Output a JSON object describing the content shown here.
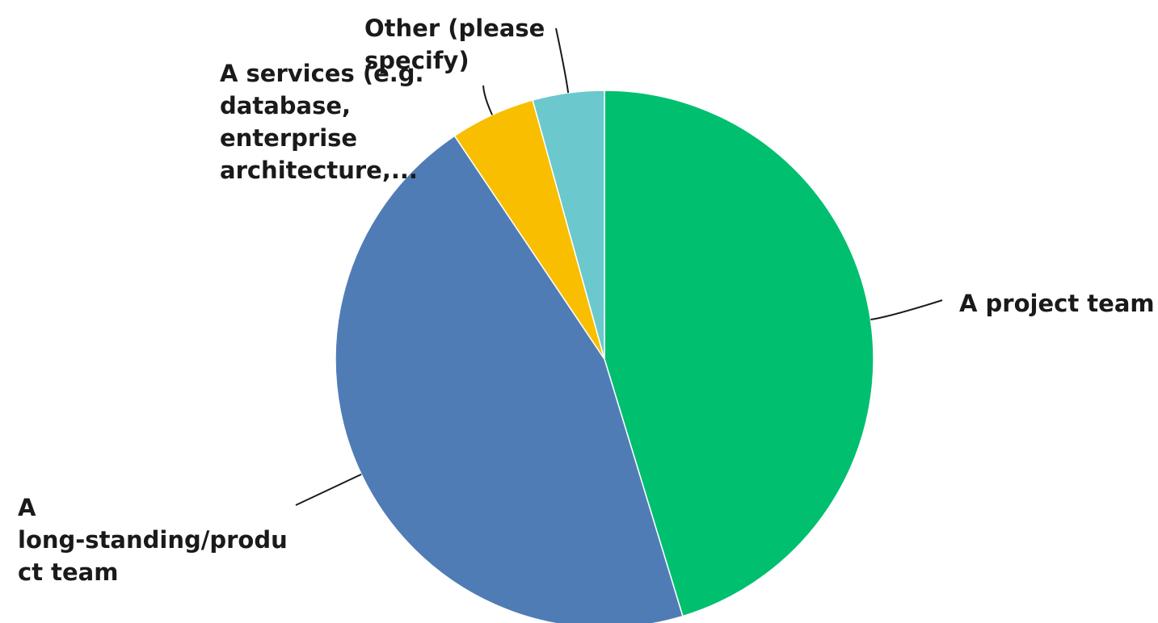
{
  "chart_data": {
    "type": "pie",
    "title": "",
    "start_angle_deg": 0,
    "direction": "clockwise",
    "slices": [
      {
        "label": "A project team",
        "value": 45.3,
        "color": "#00bf6f"
      },
      {
        "label": "A\nlong-standing/produ\nct team",
        "value": 45.3,
        "color": "#507cb6"
      },
      {
        "label": "A services (e.g.\ndatabase,\nenterprise\narchitecture,...",
        "value": 5.1,
        "color": "#f9be00"
      },
      {
        "label": "Other (please\nspecify)",
        "value": 4.3,
        "color": "#6bc8cd"
      }
    ]
  }
}
